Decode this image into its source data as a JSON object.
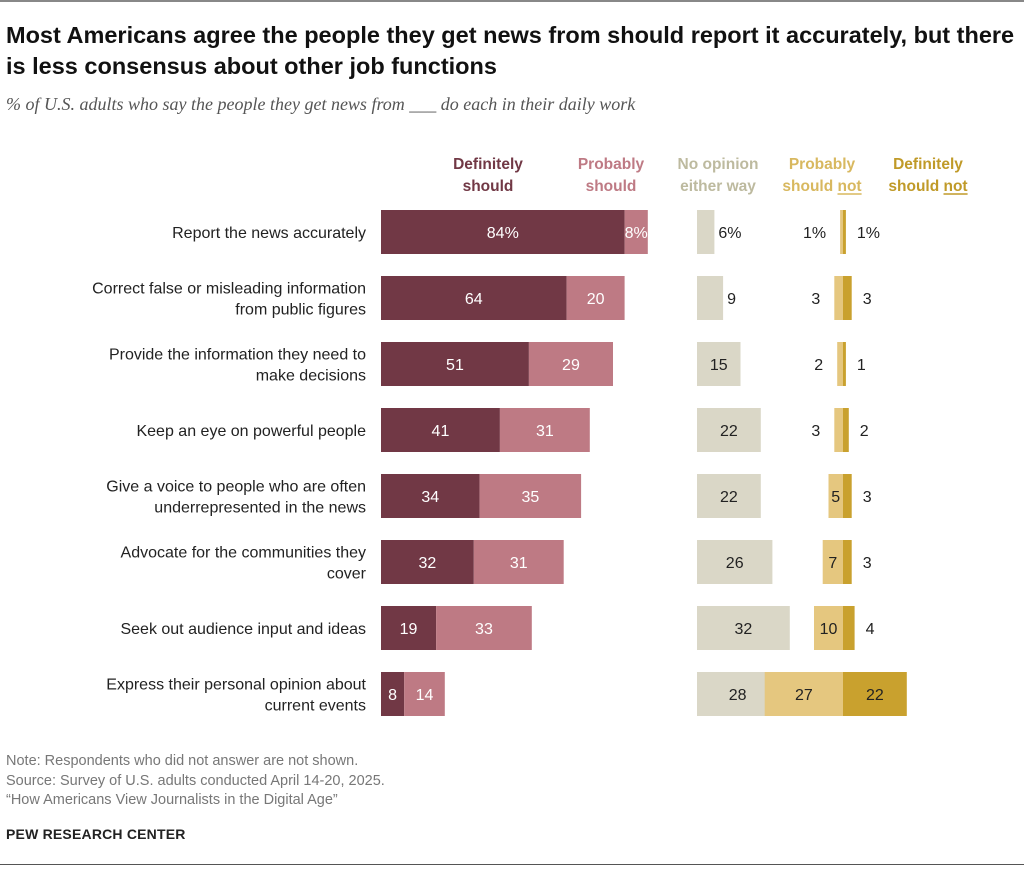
{
  "title": "Most Americans agree the people they get news from should report it accurately, but there is less consensus about other job functions",
  "subtitle": "% of U.S. adults who say the people they get news from ___ do each in their daily work",
  "notes": [
    "Note: Respondents who did not answer are not shown.",
    "Source: Survey of U.S. adults conducted April 14-20, 2025.",
    "“How Americans View Journalists in the Digital Age”"
  ],
  "source_org": "PEW RESEARCH CENTER",
  "colors": {
    "definitely_should": "#713845",
    "probably_should": "#BE7A84",
    "no_opinion": "#DAD7C7",
    "probably_should_not": "#E5C77F",
    "definitely_should_not": "#C9A12E",
    "label_no_opinion": "#BDBA9F",
    "label_probably_not": "#D8B85F",
    "label_definitely_not": "#C09A28"
  },
  "chart_data": {
    "type": "bar",
    "orientation": "horizontal",
    "stacked": true,
    "categories": [
      [
        "Report the news accurately"
      ],
      [
        "Correct false or misleading information",
        "from public figures"
      ],
      [
        "Provide the information they need to",
        "make decisions"
      ],
      [
        "Keep an eye on powerful people"
      ],
      [
        "Give a voice to people who are often",
        "underrepresented in the news"
      ],
      [
        "Advocate for the communities they",
        "cover"
      ],
      [
        "Seek out audience input and ideas"
      ],
      [
        "Express their personal opinion about",
        "current events"
      ]
    ],
    "series": [
      {
        "name": "Definitely should",
        "name_lines": [
          "Definitely",
          "should"
        ],
        "group": "should",
        "values": [
          84,
          64,
          51,
          41,
          34,
          32,
          19,
          8
        ]
      },
      {
        "name": "Probably should",
        "name_lines": [
          "Probably",
          "should"
        ],
        "group": "should",
        "values": [
          8,
          20,
          29,
          31,
          35,
          31,
          33,
          14
        ]
      },
      {
        "name": "No opinion either way",
        "name_lines": [
          "No opinion",
          "either way"
        ],
        "group": "none",
        "values": [
          6,
          9,
          15,
          22,
          22,
          26,
          32,
          28
        ]
      },
      {
        "name": "Probably should not",
        "name_lines": [
          "Probably",
          "should not"
        ],
        "group": "not",
        "values": [
          1,
          3,
          2,
          3,
          5,
          7,
          10,
          27
        ]
      },
      {
        "name": "Definitely should not",
        "name_lines": [
          "Definitely",
          "should not"
        ],
        "group": "not",
        "values": [
          1,
          3,
          1,
          2,
          3,
          3,
          4,
          22
        ]
      }
    ],
    "value_labels": {
      "definitely_should": [
        "84%",
        "64",
        "51",
        "41",
        "34",
        "32",
        "19",
        "8"
      ],
      "probably_should": [
        "8%",
        "20",
        "29",
        "31",
        "35",
        "31",
        "33",
        "14"
      ],
      "no_opinion": [
        "6%",
        "9",
        "15",
        "22",
        "22",
        "26",
        "32",
        "28"
      ],
      "probably_should_not": [
        "1%",
        "3",
        "2",
        "3",
        "5",
        "7",
        "10",
        "27"
      ],
      "definitely_should_not": [
        "1%",
        "3",
        "1",
        "2",
        "3",
        "3",
        "4",
        "22"
      ]
    },
    "legend_placement": "top"
  }
}
